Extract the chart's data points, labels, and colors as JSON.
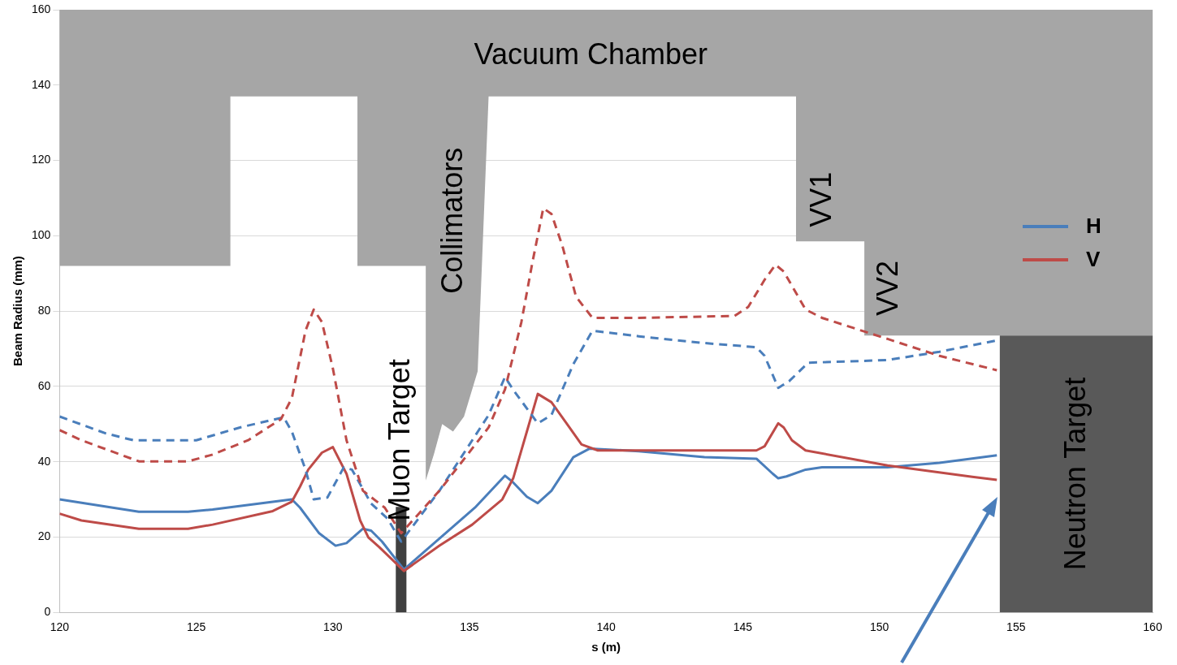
{
  "chart_data": {
    "type": "line",
    "xlabel": "s (m)",
    "ylabel": "Beam Radius (mm)",
    "xlim": [
      120,
      160
    ],
    "xticks": [
      120,
      125,
      130,
      135,
      140,
      145,
      150,
      155,
      160
    ],
    "ylim": [
      0,
      160
    ],
    "yticks": [
      0,
      20,
      40,
      60,
      80,
      100,
      120,
      140,
      160
    ],
    "grid": "y",
    "legend": "right",
    "marker": "none",
    "series": [
      {
        "type": "area",
        "color": "#a6a6a6",
        "x": [
          120,
          126.25,
          126.25,
          130.9,
          130.9,
          133.4,
          133.4,
          133.7,
          134.0,
          134.4,
          134.8,
          135.3,
          135.7,
          146.95,
          146.95,
          149.45,
          149.45,
          160,
          160,
          120
        ],
        "values": [
          92,
          92,
          137,
          137,
          92,
          92,
          35,
          42,
          50,
          48,
          52,
          64,
          137,
          137,
          98.5,
          98.5,
          73.5,
          73.5,
          160,
          160
        ]
      },
      {
        "type": "area",
        "color": "#595959",
        "x": [
          154.4,
          160
        ],
        "values": [
          73.5,
          73.5
        ]
      },
      {
        "type": "area",
        "color": "#404040",
        "x": [
          132.3,
          132.7
        ],
        "values": [
          28,
          28
        ]
      },
      {
        "name": "H",
        "color": "#4a7ebb",
        "line_style": "solid",
        "x": [
          120,
          122.9,
          124.7,
          125.6,
          128.5,
          128.8,
          129.5,
          130.1,
          130.5,
          131.1,
          131.4,
          131.8,
          132.6,
          135.2,
          136.3,
          136.6,
          137.1,
          137.5,
          138.0,
          138.8,
          139.4,
          141.2,
          143.6,
          145.5,
          146.1,
          146.3,
          146.6,
          147.3,
          147.9,
          150.3,
          152.2,
          154.3
        ],
        "values": [
          30,
          26.7,
          26.7,
          27.3,
          30,
          27.8,
          21,
          17.7,
          18.4,
          22.2,
          21.7,
          18.8,
          11.4,
          27.8,
          36.3,
          34.5,
          30.7,
          29,
          32.3,
          41.2,
          43.5,
          42.8,
          41.2,
          40.8,
          36.8,
          35.6,
          36.1,
          37.9,
          38.5,
          38.5,
          39.7,
          41.7
        ]
      },
      {
        "name": "V",
        "color": "#be4b48",
        "line_style": "solid",
        "x": [
          120,
          120.8,
          122.9,
          124.7,
          125.6,
          127.8,
          128.5,
          128.8,
          129.1,
          129.6,
          130.0,
          130.5,
          131,
          131.3,
          131.7,
          132.6,
          133.9,
          135.1,
          136.2,
          136.6,
          137.1,
          137.5,
          138.0,
          138.6,
          139.1,
          139.7,
          141.2,
          145.5,
          145.8,
          146.3,
          146.5,
          146.8,
          147.3,
          150.3,
          153.4,
          154.3
        ],
        "values": [
          26.2,
          24.4,
          22.2,
          22.2,
          23.3,
          26.9,
          29.4,
          33.4,
          37.9,
          42.4,
          43.9,
          36.8,
          24.4,
          19.9,
          17.3,
          11,
          17.7,
          23.3,
          30,
          35.6,
          48,
          58,
          55.8,
          49.7,
          44.6,
          43,
          43,
          43,
          44.1,
          50.2,
          49.1,
          45.7,
          43,
          39,
          36,
          35.2
        ]
      },
      {
        "color": "#4a7ebb",
        "line_style": "dashed",
        "x": [
          120,
          121.7,
          122.7,
          125.0,
          126.6,
          128.2,
          128.5,
          129,
          129.3,
          129.8,
          130.4,
          130.7,
          131.4,
          132,
          132.5,
          133.9,
          135.1,
          135.7,
          136.3,
          136.6,
          137.5,
          138.0,
          138.8,
          139.5,
          141.2,
          143.6,
          145.5,
          145.8,
          146.3,
          146.7,
          147.4,
          148.8,
          150.3,
          152.2,
          154.3
        ],
        "values": [
          52,
          47.5,
          45.7,
          45.7,
          49.1,
          51.8,
          48,
          37.9,
          30,
          30.5,
          38.5,
          37.9,
          28.9,
          24.9,
          18.8,
          32.3,
          45.7,
          52.4,
          62.5,
          59.1,
          50.2,
          52.4,
          65.9,
          74.8,
          73.3,
          71.5,
          70.4,
          68.1,
          59.6,
          61.4,
          66.3,
          66.6,
          67,
          69.2,
          72.2
        ]
      },
      {
        "color": "#be4b48",
        "line_style": "dashed",
        "x": [
          120,
          120.8,
          122.9,
          124.7,
          125.6,
          126.9,
          128.1,
          128.5,
          129,
          129.3,
          129.6,
          130.0,
          130.5,
          131.1,
          131.9,
          132.5,
          133.9,
          135.1,
          135.7,
          136.3,
          136.9,
          137.3,
          137.7,
          138.0,
          138.4,
          138.9,
          139.5,
          141.2,
          144.7,
          145.2,
          145.8,
          146.2,
          146.5,
          147.3,
          147.9,
          150.3,
          152.2,
          154.3
        ],
        "values": [
          48.4,
          45.7,
          40.1,
          40.1,
          41.9,
          45.7,
          51.3,
          56.9,
          74.8,
          80.4,
          77.1,
          64.8,
          45.7,
          32.3,
          27.8,
          21,
          32.3,
          43.5,
          49.1,
          59.2,
          77.1,
          92.8,
          107.3,
          105.8,
          97.3,
          83.8,
          78.2,
          78.2,
          78.7,
          81.1,
          88.3,
          92.3,
          90.5,
          80.4,
          78.2,
          72.6,
          68.1,
          64.3
        ]
      }
    ],
    "annotations": [
      "Vacuum Chamber",
      "Collimators",
      "Muon Target",
      "VV1",
      "VV2",
      "Neutron Target"
    ]
  }
}
